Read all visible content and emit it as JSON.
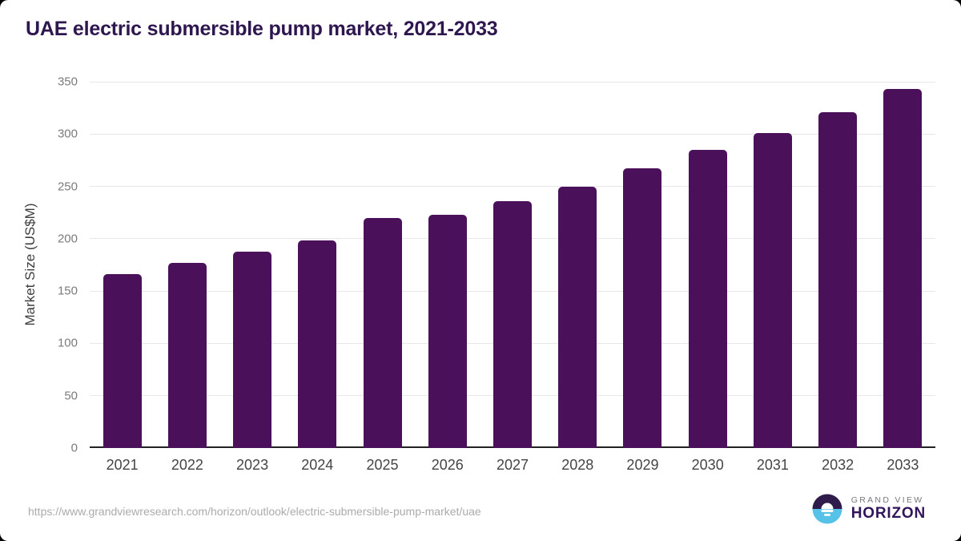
{
  "title": "UAE electric submersible pump market, 2021-2033",
  "colors": {
    "bar": "#4A115A",
    "title_text": "#2E164E",
    "gridline": "#e7e7e7",
    "axis_line": "#222222",
    "logo_purple": "#2F1B4C",
    "logo_blue": "#56C2E8"
  },
  "chart_data": {
    "type": "bar",
    "title": "UAE electric submersible pump market, 2021-2033",
    "categories": [
      "2021",
      "2022",
      "2023",
      "2024",
      "2025",
      "2026",
      "2027",
      "2028",
      "2029",
      "2030",
      "2031",
      "2032",
      "2033"
    ],
    "values": [
      166,
      177,
      188,
      198,
      220,
      223,
      236,
      250,
      267,
      285,
      301,
      321,
      343
    ],
    "xlabel": "",
    "ylabel": "Market Size (US$M)",
    "ylim": [
      0,
      350
    ],
    "yticks": [
      0,
      50,
      100,
      150,
      200,
      250,
      300,
      350
    ],
    "grid": true,
    "legend": "none",
    "bar_color": "#4A115A"
  },
  "footer": {
    "source_url": "https://www.grandviewresearch.com/horizon/outlook/electric-submersible-pump-market/uae",
    "logo": {
      "line1": "GRAND VIEW",
      "line2": "HORIZON"
    }
  }
}
